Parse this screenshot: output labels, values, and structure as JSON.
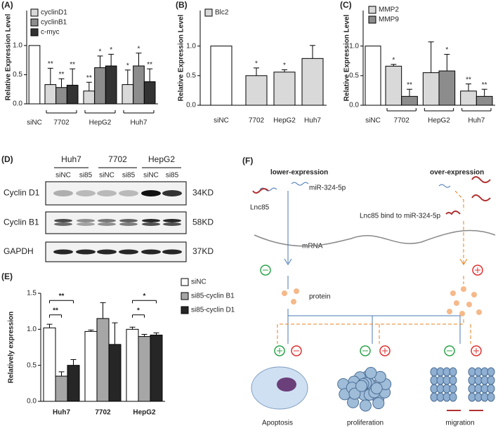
{
  "figure": {
    "panel_labels": [
      "(A)",
      "(B)",
      "(C)",
      "(D)",
      "(E)",
      "(F)"
    ]
  },
  "chart_data": [
    {
      "type": "bar",
      "ylabel": "Relative Expression Level",
      "control_category": "siNC",
      "control_value": 1,
      "control_color": "#ffffff",
      "categories": [
        "7702",
        "HepG2",
        "Huh7"
      ],
      "series": [
        {
          "name": "cyclinD1",
          "color": "#d9d9d9",
          "values": [
            0.33,
            0.22,
            0.33
          ],
          "errors": [
            0.28,
            0.15,
            0.25
          ],
          "annotations": [
            "**",
            "**",
            "*"
          ]
        },
        {
          "name": "cyclinB1",
          "color": "#8c8c8c",
          "values": [
            0.28,
            0.62,
            0.65
          ],
          "errors": [
            0.15,
            0.2,
            0.22
          ],
          "annotations": [
            "**",
            "*",
            "*"
          ]
        },
        {
          "name": "c-myc",
          "color": "#333333",
          "values": [
            0.32,
            0.65,
            0.38
          ],
          "errors": [
            0.28,
            0.2,
            0.22
          ],
          "annotations": [
            "**",
            "*",
            "**"
          ]
        }
      ],
      "ylim": [
        0,
        1.6
      ],
      "yticks": [
        {
          "value": 0,
          "label": "0.0"
        },
        {
          "value": 0.5,
          "label": "0.5"
        },
        {
          "value": 1,
          "label": "1.0"
        }
      ]
    },
    {
      "type": "bar",
      "ylabel": "Relative Expression Level",
      "control_category": "siNC",
      "control_value": 1,
      "control_color": "#ffffff",
      "categories": [
        "7702",
        "HepG2",
        "Huh7"
      ],
      "series": [
        {
          "name": "Blc2",
          "color": "#d9d9d9",
          "values": [
            0.5,
            0.56,
            0.79
          ],
          "errors": [
            0.13,
            0.04,
            0.22
          ],
          "annotations": [
            "*",
            "*",
            null
          ]
        }
      ],
      "ylim": [
        0,
        1.6
      ],
      "yticks": [
        {
          "value": 0,
          "label": "0.0"
        },
        {
          "value": 0.5,
          "label": "0.5"
        },
        {
          "value": 1,
          "label": "1.0"
        }
      ]
    },
    {
      "type": "bar",
      "ylabel": "Relative Expression Level",
      "control_category": "siNC",
      "control_value": 1,
      "control_color": "#ffffff",
      "categories": [
        "7702",
        "HepG2",
        "Huh7"
      ],
      "series": [
        {
          "name": "MMP2",
          "color": "#d9d9d9",
          "values": [
            0.66,
            0.55,
            0.24
          ],
          "errors": [
            0.03,
            0.52,
            0.12
          ],
          "annotations": [
            "*",
            null,
            "**"
          ]
        },
        {
          "name": "MMP9",
          "color": "#8c8c8c",
          "values": [
            0.15,
            0.58,
            0.15
          ],
          "errors": [
            0.12,
            0.28,
            0.12
          ],
          "annotations": [
            "**",
            "*",
            "**"
          ]
        }
      ],
      "ylim": [
        0,
        1.6
      ],
      "yticks": [
        {
          "value": 0,
          "label": "0.0"
        },
        {
          "value": 0.5,
          "label": "0.5"
        },
        {
          "value": 1,
          "label": "1.0"
        }
      ]
    },
    {
      "type": "bar",
      "ylabel": "Relatively expression",
      "categories": [
        "Huh7",
        "7702",
        "HepG2"
      ],
      "series": [
        {
          "name": "siNC",
          "color": "#ffffff",
          "values": [
            1.02,
            0.97,
            1.0
          ],
          "errors": [
            0.05,
            0.02,
            0.03
          ]
        },
        {
          "name": "si85-cyclin B1",
          "color": "#a6a6a6",
          "values": [
            0.35,
            1.15,
            0.9
          ],
          "errors": [
            0.06,
            0.22,
            0.03
          ]
        },
        {
          "name": "si85-cyclin D1",
          "color": "#262626",
          "values": [
            0.5,
            0.79,
            0.92
          ],
          "errors": [
            0.08,
            0.3,
            0.03
          ]
        }
      ],
      "brackets": [
        {
          "label": "**"
        },
        {
          "label": "**"
        },
        {
          "label": "*"
        },
        {
          "label": "*"
        }
      ],
      "ylim": [
        0,
        1.5
      ],
      "yticks": [
        {
          "value": 0,
          "label": "0.0"
        },
        {
          "value": 0.5,
          "label": "0.5"
        },
        {
          "value": 1,
          "label": "1.0"
        },
        {
          "value": 1.5,
          "label": "1.5"
        }
      ]
    }
  ],
  "blot": {
    "groups": [
      "Huh7",
      "7702",
      "HepG2"
    ],
    "lanes": [
      "siNC",
      "si85",
      "siNC",
      "si85",
      "siNC",
      "si85"
    ],
    "rows": [
      {
        "protein": "Cyclin D1",
        "size": "34KD"
      },
      {
        "protein": "Cyclin B1",
        "size": "58KD"
      },
      {
        "protein": "GAPDH",
        "size": "37KD"
      }
    ]
  },
  "diagram": {
    "left_title": "lower-expression",
    "right_title": "over-expression",
    "mirna": "miR-324-5p",
    "lnc": "Lnc85",
    "binding": "Lnc85 bind to miR-324-5p",
    "mrna": "mRNA",
    "protein": "protein",
    "outcomes": [
      "Apoptosis",
      "proliferation",
      "migration"
    ]
  }
}
